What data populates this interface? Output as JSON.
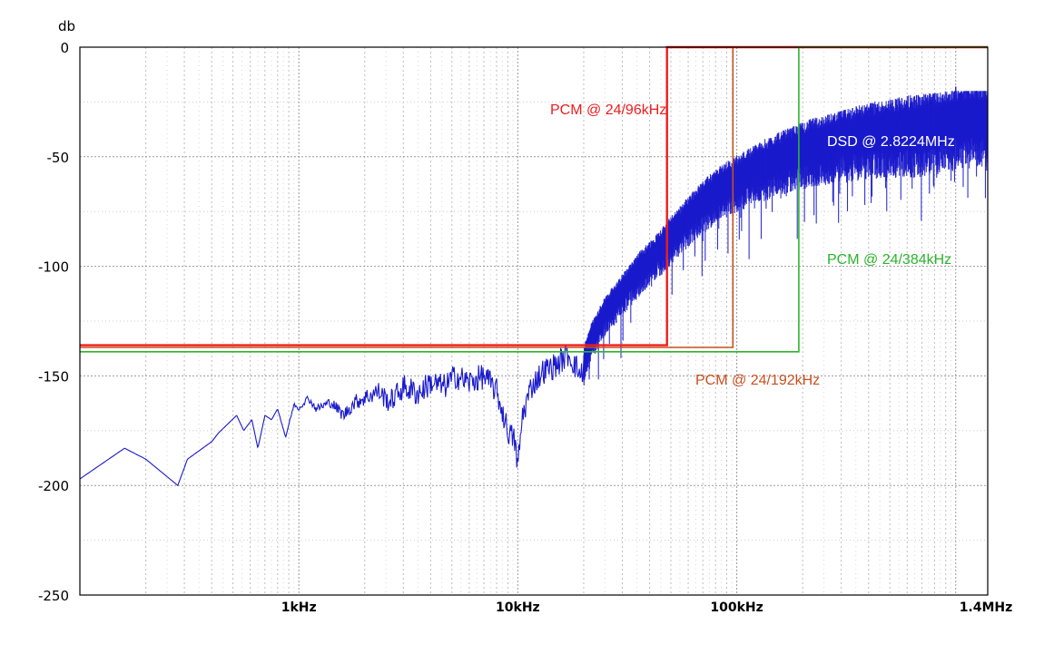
{
  "chart_data": {
    "type": "line",
    "title": "",
    "ylabel": "db",
    "xlabel": "",
    "x_scale": "log",
    "xlim": [
      100,
      1400000
    ],
    "ylim": [
      -250,
      0
    ],
    "grid": true,
    "y_ticks": [
      {
        "value": 0,
        "label": "0"
      },
      {
        "value": -50,
        "label": "-50"
      },
      {
        "value": -100,
        "label": "-100"
      },
      {
        "value": -150,
        "label": "-150"
      },
      {
        "value": -200,
        "label": "-200"
      },
      {
        "value": -250,
        "label": "-250"
      }
    ],
    "x_ticks": [
      {
        "value": 1000,
        "label": "1kHz"
      },
      {
        "value": 10000,
        "label": "10kHz"
      },
      {
        "value": 100000,
        "label": "100kHz"
      },
      {
        "value": 1400000,
        "label": "1.4MHz"
      }
    ],
    "series": [
      {
        "name": "DSD @ 2.8224MHz",
        "color": "#1a1acc",
        "x": [
          100,
          160,
          200,
          280,
          310,
          400,
          430,
          520,
          560,
          610,
          650,
          700,
          750,
          800,
          870,
          950,
          1000,
          1100,
          1200,
          1400,
          1600,
          1800,
          2000,
          2300,
          2600,
          3000,
          3500,
          4000,
          4600,
          5200,
          6000,
          7000,
          8000,
          9000,
          9700,
          10000,
          10500,
          11500,
          13000,
          15000,
          17000,
          19500,
          20500,
          22000,
          25000,
          30000,
          36000,
          45000,
          55000,
          65000,
          80000,
          100000,
          130000,
          170000,
          220000,
          300000,
          400000,
          550000,
          700000,
          850000,
          1000000,
          1200000,
          1400000
        ],
        "values": [
          -197,
          -183,
          -188,
          -200,
          -188,
          -180,
          -176,
          -168,
          -175,
          -170,
          -183,
          -168,
          -170,
          -165,
          -178,
          -163,
          -165,
          -160,
          -165,
          -162,
          -168,
          -162,
          -160,
          -157,
          -162,
          -155,
          -158,
          -153,
          -155,
          -150,
          -153,
          -150,
          -157,
          -175,
          -180,
          -192,
          -168,
          -155,
          -148,
          -145,
          -140,
          -150,
          -138,
          -130,
          -120,
          -110,
          -100,
          -90,
          -80,
          -72,
          -64,
          -58,
          -52,
          -47,
          -43,
          -40,
          -37,
          -35,
          -34,
          -33,
          -31,
          -30,
          -30
        ]
      },
      {
        "name": "PCM @ 24/96kHz",
        "color": "#ee1c1c",
        "x": [
          100,
          48000,
          48000,
          1400000
        ],
        "values": [
          -136,
          -136,
          0,
          0
        ]
      },
      {
        "name": "PCM @ 24/192kHz",
        "color": "#c8501e",
        "x": [
          100,
          96000,
          96000,
          1400000
        ],
        "values": [
          -137,
          -137,
          0,
          0
        ]
      },
      {
        "name": "PCM @ 24/384kHz",
        "color": "#2bb52b",
        "x": [
          100,
          192000,
          192000,
          1400000
        ],
        "values": [
          -139,
          -139,
          0,
          0
        ]
      }
    ],
    "annotations": [
      {
        "text": "PCM @ 24/96kHz",
        "color": "#ee1c1c"
      },
      {
        "text": "DSD @ 2.8224MHz",
        "color": "#ffffff"
      },
      {
        "text": "PCM @ 24/384kHz",
        "color": "#2bb52b"
      },
      {
        "text": "PCM @ 24/192kHz",
        "color": "#c8501e"
      }
    ]
  }
}
